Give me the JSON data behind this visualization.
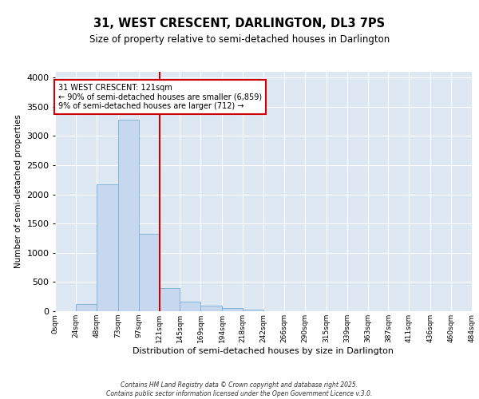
{
  "title1": "31, WEST CRESCENT, DARLINGTON, DL3 7PS",
  "title2": "Size of property relative to semi-detached houses in Darlington",
  "xlabel": "Distribution of semi-detached houses by size in Darlington",
  "ylabel": "Number of semi-detached properties",
  "bin_edges": [
    0,
    24,
    48,
    73,
    97,
    121,
    145,
    169,
    194,
    218,
    242,
    266,
    290,
    315,
    339,
    363,
    387,
    411,
    436,
    460,
    484
  ],
  "bin_labels": [
    "0sqm",
    "24sqm",
    "48sqm",
    "73sqm",
    "97sqm",
    "121sqm",
    "145sqm",
    "169sqm",
    "194sqm",
    "218sqm",
    "242sqm",
    "266sqm",
    "290sqm",
    "315sqm",
    "339sqm",
    "363sqm",
    "387sqm",
    "411sqm",
    "436sqm",
    "460sqm",
    "484sqm"
  ],
  "bar_heights": [
    0,
    120,
    2170,
    3280,
    1330,
    390,
    170,
    100,
    55,
    30,
    5,
    5,
    2,
    0,
    0,
    0,
    0,
    0,
    0,
    0
  ],
  "bar_color": "#c5d8ef",
  "bar_edge_color": "#7aadd4",
  "red_line_x": 121,
  "annotation_line1": "31 WEST CRESCENT: 121sqm",
  "annotation_line2": "← 90% of semi-detached houses are smaller (6,859)",
  "annotation_line3": "9% of semi-detached houses are larger (712) →",
  "annotation_box_color": "#ffffff",
  "annotation_box_edge": "#cc0000",
  "ylim": [
    0,
    4100
  ],
  "yticks": [
    0,
    500,
    1000,
    1500,
    2000,
    2500,
    3000,
    3500,
    4000
  ],
  "background_color": "#dde8f3",
  "grid_color": "#ffffff",
  "footer1": "Contains HM Land Registry data © Crown copyright and database right 2025.",
  "footer2": "Contains public sector information licensed under the Open Government Licence v.3.0."
}
